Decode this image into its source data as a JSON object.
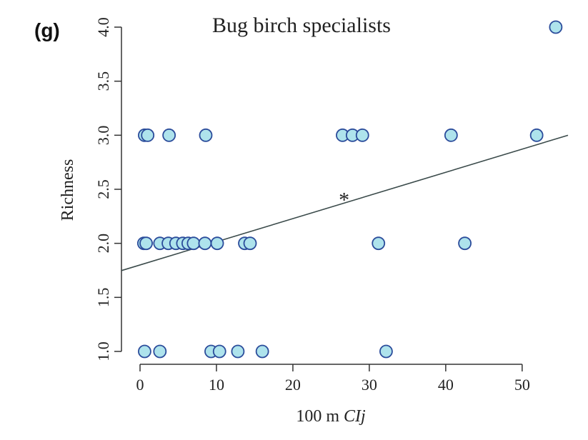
{
  "chart_data": {
    "type": "scatter",
    "panel_label": "(g)",
    "title": "Bug birch specialists",
    "xlabel_prefix": "100 m ",
    "xlabel_var": "CIj",
    "ylabel": "Richness",
    "xlim": [
      0,
      56
    ],
    "ylim": [
      1.0,
      4.0
    ],
    "xticks": [
      0,
      10,
      20,
      30,
      40,
      50
    ],
    "yticks": [
      1.0,
      1.5,
      2.0,
      2.5,
      3.0,
      3.5,
      4.0
    ],
    "points": [
      {
        "x": 0.6,
        "y": 1
      },
      {
        "x": 2.6,
        "y": 1
      },
      {
        "x": 9.3,
        "y": 1
      },
      {
        "x": 10.4,
        "y": 1
      },
      {
        "x": 12.8,
        "y": 1
      },
      {
        "x": 16.0,
        "y": 1
      },
      {
        "x": 32.2,
        "y": 1
      },
      {
        "x": 0.5,
        "y": 2
      },
      {
        "x": 0.8,
        "y": 2
      },
      {
        "x": 2.6,
        "y": 2
      },
      {
        "x": 3.7,
        "y": 2
      },
      {
        "x": 4.7,
        "y": 2
      },
      {
        "x": 5.6,
        "y": 2
      },
      {
        "x": 6.3,
        "y": 2
      },
      {
        "x": 7.0,
        "y": 2
      },
      {
        "x": 8.5,
        "y": 2
      },
      {
        "x": 10.1,
        "y": 2
      },
      {
        "x": 13.7,
        "y": 2
      },
      {
        "x": 14.4,
        "y": 2
      },
      {
        "x": 31.2,
        "y": 2
      },
      {
        "x": 42.5,
        "y": 2
      },
      {
        "x": 0.6,
        "y": 3
      },
      {
        "x": 1.0,
        "y": 3
      },
      {
        "x": 3.8,
        "y": 3
      },
      {
        "x": 8.6,
        "y": 3
      },
      {
        "x": 26.5,
        "y": 3
      },
      {
        "x": 27.8,
        "y": 3
      },
      {
        "x": 29.1,
        "y": 3
      },
      {
        "x": 40.7,
        "y": 3
      },
      {
        "x": 51.9,
        "y": 3
      },
      {
        "x": 54.4,
        "y": 4
      }
    ],
    "trendline": {
      "x": [
        0,
        56
      ],
      "y": [
        1.8,
        3.0
      ]
    },
    "annotation": {
      "text": "*",
      "x": 26.7,
      "y": 2.43
    },
    "grid": false,
    "legend": "none"
  }
}
